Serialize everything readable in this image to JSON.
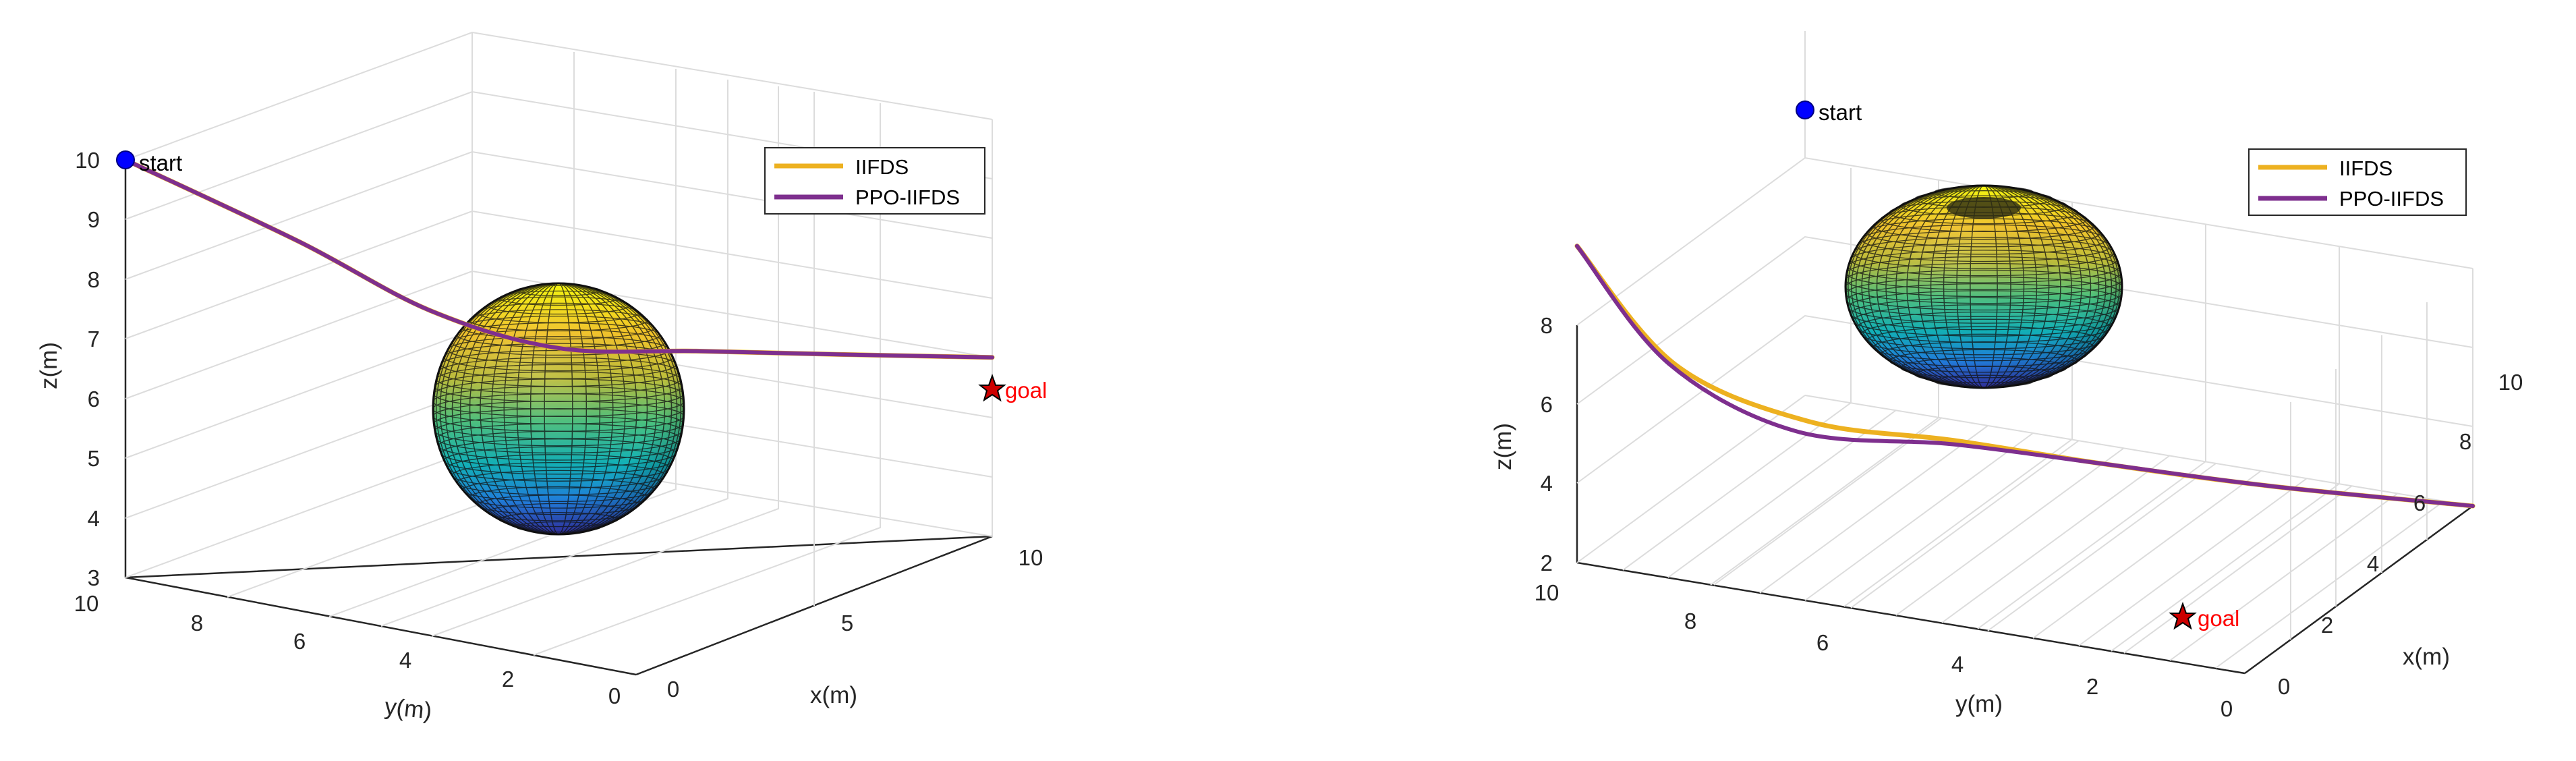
{
  "chart_data": [
    {
      "type": "line",
      "axes": {
        "xlabel": "x(m)",
        "ylabel": "y(m)",
        "zlabel": "z(m)",
        "xlim": [
          0,
          10
        ],
        "ylim": [
          0,
          10
        ],
        "zlim": [
          3,
          10
        ],
        "x_ticks": [
          "0",
          "5",
          "10"
        ],
        "y_ticks": [
          "10",
          "8",
          "6",
          "4",
          "2",
          "0"
        ],
        "z_ticks": [
          "3",
          "4",
          "5",
          "6",
          "7",
          "8",
          "9",
          "10"
        ],
        "grid": true
      },
      "legend": {
        "placement": "top-right",
        "entries": [
          "IIFDS",
          "PPO-IIFDS"
        ]
      },
      "series": [
        {
          "name": "IIFDS",
          "color": "#EDB120",
          "points": [
            [
              0,
              10,
              10
            ],
            [
              1.7,
              7.8,
              8.6
            ],
            [
              3.3,
              6.3,
              7.3
            ],
            [
              5,
              5,
              6.5
            ],
            [
              6.7,
              3.5,
              6.3
            ],
            [
              8.3,
              1.8,
              6.15
            ],
            [
              10,
              0,
              6
            ]
          ]
        },
        {
          "name": "PPO-IIFDS",
          "color": "#7E2F8E",
          "points": [
            [
              0,
              10,
              10
            ],
            [
              1.7,
              7.8,
              8.6
            ],
            [
              3.3,
              6.3,
              7.3
            ],
            [
              5,
              5,
              6.5
            ],
            [
              6.7,
              3.5,
              6.3
            ],
            [
              8.3,
              1.8,
              6.15
            ],
            [
              10,
              0,
              6
            ]
          ]
        }
      ],
      "obstacle": {
        "shape": "sphere",
        "colormap": "parula"
      },
      "markers": [
        {
          "label": "start",
          "point": [
            0,
            10,
            10
          ],
          "color": "#0000ff",
          "label_color": "#000000"
        },
        {
          "label": "goal",
          "point": [
            10,
            0,
            6
          ],
          "color": "#cc0000",
          "label_color": "#ff0000"
        }
      ]
    },
    {
      "type": "line",
      "axes": {
        "xlabel": "x(m)",
        "ylabel": "y(m)",
        "zlabel": "z(m)",
        "xlim": [
          0,
          10
        ],
        "ylim": [
          0,
          10
        ],
        "zlim": [
          2,
          8
        ],
        "x_ticks": [
          "0",
          "2",
          "4",
          "6",
          "8",
          "10"
        ],
        "y_ticks": [
          "10",
          "8",
          "6",
          "4",
          "2",
          "0"
        ],
        "z_ticks": [
          "2",
          "4",
          "6",
          "8"
        ],
        "grid": true
      },
      "legend": {
        "placement": "top-right",
        "entries": [
          "IIFDS",
          "PPO-IIFDS"
        ]
      },
      "series": [
        {
          "name": "IIFDS",
          "color": "#EDB120",
          "points": [
            [
              0,
              10,
              10
            ],
            [
              0.8,
              8.8,
              7
            ],
            [
              2,
              7.2,
              5.5
            ],
            [
              3.6,
              5.6,
              4.8
            ],
            [
              5.4,
              4,
              3.9
            ],
            [
              7.6,
              2.2,
              2.9
            ],
            [
              10,
              0,
              2
            ]
          ]
        },
        {
          "name": "PPO-IIFDS",
          "color": "#7E2F8E",
          "points": [
            [
              0,
              10,
              10
            ],
            [
              0.8,
              8.9,
              7
            ],
            [
              2,
              7.4,
              5.2
            ],
            [
              3.6,
              5.6,
              4.7
            ],
            [
              5.4,
              4,
              3.9
            ],
            [
              7.6,
              2.2,
              2.9
            ],
            [
              10,
              0,
              2
            ]
          ]
        }
      ],
      "obstacle": {
        "shape": "oblate-spheroid",
        "colormap": "parula"
      },
      "markers": [
        {
          "label": "start",
          "point": [
            0,
            10,
            10
          ],
          "color": "#0000ff",
          "label_color": "#000000"
        },
        {
          "label": "goal",
          "point": [
            10,
            0,
            2
          ],
          "color": "#cc0000",
          "label_color": "#ff0000"
        }
      ]
    }
  ]
}
